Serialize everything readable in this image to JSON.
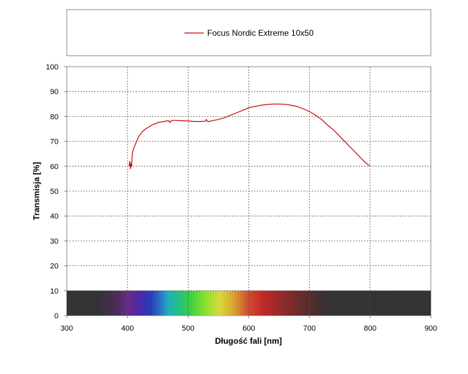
{
  "chart_data": {
    "type": "line",
    "xlabel": "Długość fali [nm]",
    "ylabel": "Transmisja [%]",
    "xlim": [
      300,
      900
    ],
    "ylim": [
      0,
      100
    ],
    "xticks": [
      300,
      400,
      500,
      600,
      700,
      800,
      900
    ],
    "yticks": [
      0,
      10,
      20,
      30,
      40,
      50,
      60,
      70,
      80,
      90,
      100
    ],
    "grid": true,
    "legend_position": "top",
    "spectrum_band": {
      "y_from": 0,
      "y_to": 10,
      "x_from": 300,
      "x_to": 900
    },
    "series": [
      {
        "name": "Focus Nordic Extreme 10x50",
        "color": "#cc0000",
        "x": [
          403,
          404,
          405,
          406,
          407,
          408,
          410,
          415,
          420,
          425,
          430,
          440,
          450,
          460,
          468,
          470,
          472,
          475,
          480,
          490,
          500,
          510,
          520,
          528,
          530,
          532,
          535,
          540,
          550,
          560,
          570,
          580,
          590,
          600,
          610,
          620,
          630,
          640,
          650,
          660,
          670,
          680,
          690,
          700,
          710,
          720,
          730,
          740,
          750,
          760,
          770,
          780,
          790,
          800
        ],
        "y": [
          60,
          62,
          59,
          61,
          60,
          65,
          67,
          70,
          72.5,
          74,
          75,
          76.5,
          77.5,
          78,
          78.3,
          77.5,
          78.3,
          78.4,
          78.4,
          78.3,
          78.2,
          78.0,
          78.0,
          78.1,
          78.8,
          78.0,
          78.0,
          78.3,
          78.8,
          79.5,
          80.5,
          81.5,
          82.5,
          83.5,
          84,
          84.5,
          84.8,
          85,
          85,
          84.9,
          84.5,
          84,
          83,
          82,
          80.5,
          78.8,
          76.5,
          74.5,
          72,
          69.5,
          67,
          64.5,
          62,
          60
        ]
      }
    ]
  }
}
